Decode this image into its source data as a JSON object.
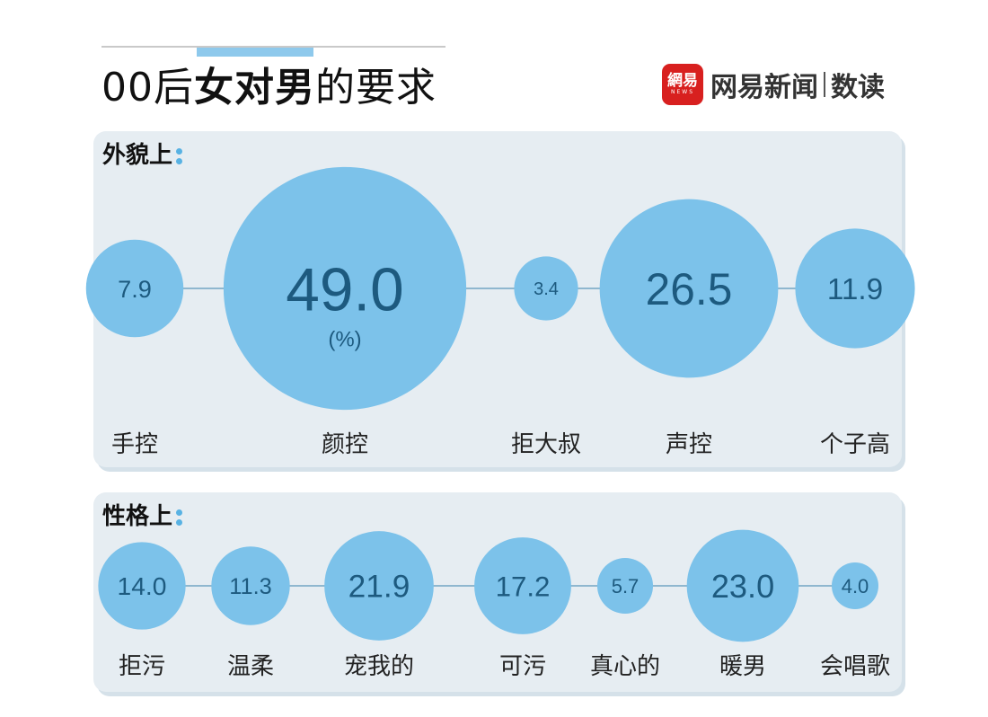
{
  "header": {
    "title_prefix": "00后",
    "title_emphasis": "女对男",
    "title_suffix": "的要求"
  },
  "brand": {
    "logo_text": "網易",
    "logo_subtext": "NEWS",
    "name": "网易新闻",
    "sub": "数读"
  },
  "colors": {
    "bubble": "#7cc2ea",
    "value_text": "#1d5a7f",
    "connector": "#8fb7cf",
    "panel_bg": "#e6edf2",
    "accent": "#8ec9ec"
  },
  "chart_data": [
    {
      "type": "bubble",
      "title": "外貌上",
      "unit": "(%)",
      "categories": [
        "手控",
        "颜控",
        "拒大叔",
        "声控",
        "个子高"
      ],
      "values": [
        7.9,
        49.0,
        3.4,
        26.5,
        11.9
      ],
      "value_labels": [
        "7.9",
        "49.0",
        "3.4",
        "26.5",
        "11.9"
      ]
    },
    {
      "type": "bubble",
      "title": "性格上",
      "categories": [
        "拒污",
        "温柔",
        "宠我的",
        "可污",
        "真心的",
        "暖男",
        "会唱歌"
      ],
      "values": [
        14.0,
        11.3,
        21.9,
        17.2,
        5.7,
        23.0,
        4.0
      ],
      "value_labels": [
        "14.0",
        "11.3",
        "21.9",
        "17.2",
        "5.7",
        "23.0",
        "4.0"
      ]
    }
  ]
}
